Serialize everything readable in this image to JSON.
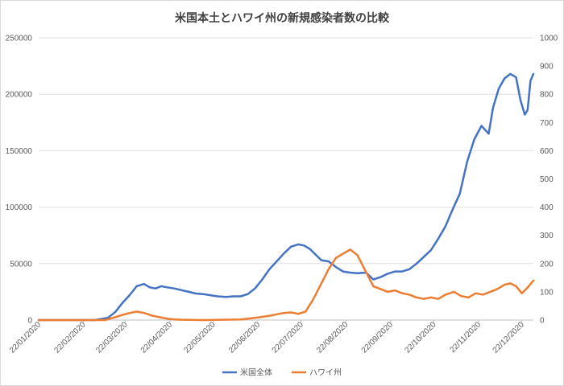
{
  "chart_data": {
    "type": "line",
    "title": "米国本土とハワイ州の新規感染者数の比較",
    "xlabel": "",
    "ylabel": "",
    "grid": true,
    "legend_position": "bottom",
    "x_start": "22/01/2020",
    "x_end": "30/12/2020",
    "x_ticks": [
      "22/01/2020",
      "22/02/2020",
      "22/03/2020",
      "22/04/2020",
      "22/05/2020",
      "22/06/2020",
      "22/07/2020",
      "22/08/2020",
      "22/09/2020",
      "22/10/2020",
      "22/11/2020",
      "22/12/2020"
    ],
    "y_left": {
      "min": 0,
      "max": 250000,
      "ticks": [
        "0",
        "50000",
        "100000",
        "150000",
        "200000",
        "250000"
      ]
    },
    "y_right": {
      "min": 0,
      "max": 1000,
      "ticks": [
        "0",
        "100",
        "200",
        "300",
        "400",
        "500",
        "600",
        "700",
        "800",
        "900",
        "1000"
      ]
    },
    "series": [
      {
        "name": "米国全体",
        "axis": "left",
        "color": "#4472c4",
        "points": [
          [
            "22/01/2020",
            0
          ],
          [
            "01/03/2020",
            0
          ],
          [
            "10/03/2020",
            2000
          ],
          [
            "15/03/2020",
            7000
          ],
          [
            "20/03/2020",
            15000
          ],
          [
            "25/03/2020",
            22000
          ],
          [
            "30/03/2020",
            30000
          ],
          [
            "04/04/2020",
            32000
          ],
          [
            "08/04/2020",
            29000
          ],
          [
            "12/04/2020",
            28000
          ],
          [
            "16/04/2020",
            30000
          ],
          [
            "20/04/2020",
            29000
          ],
          [
            "25/04/2020",
            28000
          ],
          [
            "30/04/2020",
            26500
          ],
          [
            "05/05/2020",
            25000
          ],
          [
            "10/05/2020",
            23500
          ],
          [
            "15/05/2020",
            23000
          ],
          [
            "20/05/2020",
            22000
          ],
          [
            "25/05/2020",
            21000
          ],
          [
            "31/05/2020",
            20500
          ],
          [
            "05/06/2020",
            21000
          ],
          [
            "10/06/2020",
            21000
          ],
          [
            "15/06/2020",
            23000
          ],
          [
            "20/06/2020",
            28000
          ],
          [
            "25/06/2020",
            36000
          ],
          [
            "30/06/2020",
            45000
          ],
          [
            "05/07/2020",
            52000
          ],
          [
            "10/07/2020",
            59000
          ],
          [
            "15/07/2020",
            65000
          ],
          [
            "20/07/2020",
            67000
          ],
          [
            "24/07/2020",
            66000
          ],
          [
            "28/07/2020",
            63000
          ],
          [
            "01/08/2020",
            58000
          ],
          [
            "05/08/2020",
            53000
          ],
          [
            "10/08/2020",
            52000
          ],
          [
            "15/08/2020",
            47000
          ],
          [
            "20/08/2020",
            43000
          ],
          [
            "25/08/2020",
            42000
          ],
          [
            "30/08/2020",
            41500
          ],
          [
            "05/09/2020",
            42000
          ],
          [
            "10/09/2020",
            36000
          ],
          [
            "15/09/2020",
            38000
          ],
          [
            "20/09/2020",
            41000
          ],
          [
            "25/09/2020",
            43000
          ],
          [
            "30/09/2020",
            43000
          ],
          [
            "05/10/2020",
            45000
          ],
          [
            "10/10/2020",
            50000
          ],
          [
            "15/10/2020",
            56000
          ],
          [
            "20/10/2020",
            62000
          ],
          [
            "25/10/2020",
            72000
          ],
          [
            "30/10/2020",
            83000
          ],
          [
            "04/11/2020",
            98000
          ],
          [
            "09/11/2020",
            112000
          ],
          [
            "14/11/2020",
            140000
          ],
          [
            "19/11/2020",
            160000
          ],
          [
            "24/11/2020",
            172000
          ],
          [
            "29/11/2020",
            165000
          ],
          [
            "02/12/2020",
            188000
          ],
          [
            "06/12/2020",
            205000
          ],
          [
            "10/12/2020",
            214000
          ],
          [
            "14/12/2020",
            218000
          ],
          [
            "18/12/2020",
            215000
          ],
          [
            "21/12/2020",
            195000
          ],
          [
            "24/12/2020",
            182000
          ],
          [
            "26/12/2020",
            186000
          ],
          [
            "28/12/2020",
            212000
          ],
          [
            "30/12/2020",
            218000
          ]
        ]
      },
      {
        "name": "ハワイ州",
        "axis": "right",
        "color": "#ed7d31",
        "points": [
          [
            "22/01/2020",
            0
          ],
          [
            "08/03/2020",
            0
          ],
          [
            "15/03/2020",
            10
          ],
          [
            "20/03/2020",
            18
          ],
          [
            "25/03/2020",
            25
          ],
          [
            "30/03/2020",
            30
          ],
          [
            "04/04/2020",
            25
          ],
          [
            "10/04/2020",
            15
          ],
          [
            "15/04/2020",
            10
          ],
          [
            "20/04/2020",
            5
          ],
          [
            "25/04/2020",
            2
          ],
          [
            "30/04/2020",
            1
          ],
          [
            "15/05/2020",
            0
          ],
          [
            "10/06/2020",
            2
          ],
          [
            "20/06/2020",
            8
          ],
          [
            "30/06/2020",
            15
          ],
          [
            "10/07/2020",
            25
          ],
          [
            "15/07/2020",
            27
          ],
          [
            "20/07/2020",
            22
          ],
          [
            "25/07/2020",
            30
          ],
          [
            "30/07/2020",
            70
          ],
          [
            "05/08/2020",
            130
          ],
          [
            "10/08/2020",
            180
          ],
          [
            "15/08/2020",
            220
          ],
          [
            "20/08/2020",
            235
          ],
          [
            "25/08/2020",
            250
          ],
          [
            "30/08/2020",
            230
          ],
          [
            "05/09/2020",
            170
          ],
          [
            "10/09/2020",
            120
          ],
          [
            "15/09/2020",
            110
          ],
          [
            "20/09/2020",
            100
          ],
          [
            "25/09/2020",
            105
          ],
          [
            "30/09/2020",
            95
          ],
          [
            "05/10/2020",
            90
          ],
          [
            "10/10/2020",
            80
          ],
          [
            "15/10/2020",
            75
          ],
          [
            "20/10/2020",
            80
          ],
          [
            "25/10/2020",
            75
          ],
          [
            "30/10/2020",
            90
          ],
          [
            "05/11/2020",
            100
          ],
          [
            "10/11/2020",
            85
          ],
          [
            "15/11/2020",
            80
          ],
          [
            "20/11/2020",
            95
          ],
          [
            "25/11/2020",
            90
          ],
          [
            "30/11/2020",
            100
          ],
          [
            "05/12/2020",
            110
          ],
          [
            "10/12/2020",
            125
          ],
          [
            "14/12/2020",
            130
          ],
          [
            "18/12/2020",
            120
          ],
          [
            "22/12/2020",
            95
          ],
          [
            "26/12/2020",
            115
          ],
          [
            "30/12/2020",
            140
          ]
        ]
      }
    ]
  }
}
